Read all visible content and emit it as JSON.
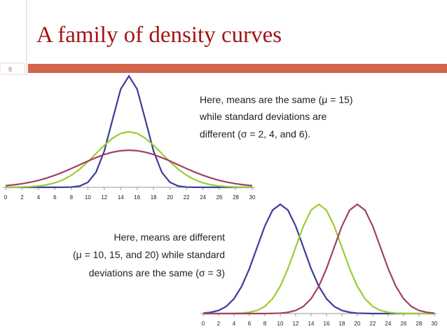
{
  "slide": {
    "title": "A family of density curves",
    "number": "8"
  },
  "chart_data": [
    {
      "type": "line",
      "x": [
        0,
        1,
        2,
        3,
        4,
        5,
        6,
        7,
        8,
        9,
        10,
        11,
        12,
        13,
        14,
        15,
        16,
        17,
        18,
        19,
        20,
        21,
        22,
        23,
        24,
        25,
        26,
        27,
        28,
        29,
        30
      ],
      "xlim": [
        0,
        30
      ],
      "xticks": [
        0,
        2,
        4,
        6,
        8,
        10,
        12,
        14,
        16,
        18,
        20,
        22,
        24,
        26,
        28,
        30
      ],
      "ylim": [
        0,
        0.2
      ],
      "annotation": [
        "Here, means are the same (μ = 15)",
        "while standard deviations are",
        "different (σ = 2, 4, and 6)."
      ],
      "series": [
        {
          "color": "#3c3c9c",
          "values": [
            0,
            0,
            0,
            0,
            0,
            0,
            0,
            0.0001,
            0.0004,
            0.0022,
            0.0088,
            0.027,
            0.0648,
            0.121,
            0.176,
            0.1995,
            0.176,
            0.121,
            0.0648,
            0.027,
            0.0088,
            0.0022,
            0.0004,
            0.0001,
            0,
            0,
            0,
            0,
            0,
            0,
            0
          ]
        },
        {
          "color": "#9acd32",
          "values": [
            0.0001,
            0.0002,
            0.0005,
            0.0011,
            0.0023,
            0.0044,
            0.0079,
            0.0135,
            0.0216,
            0.0324,
            0.0457,
            0.0605,
            0.0753,
            0.088,
            0.0967,
            0.0997,
            0.0967,
            0.088,
            0.0753,
            0.0605,
            0.0457,
            0.0324,
            0.0216,
            0.0135,
            0.0079,
            0.0044,
            0.0023,
            0.0011,
            0.0005,
            0.0002,
            0.0001
          ]
        },
        {
          "color": "#a0406a",
          "values": [
            0.0029,
            0.0044,
            0.0064,
            0.009,
            0.0124,
            0.0166,
            0.0216,
            0.0273,
            0.0337,
            0.0403,
            0.047,
            0.0532,
            0.0587,
            0.0629,
            0.0656,
            0.0665,
            0.0656,
            0.0629,
            0.0587,
            0.0532,
            0.047,
            0.0403,
            0.0337,
            0.0273,
            0.0216,
            0.0166,
            0.0124,
            0.009,
            0.0064,
            0.0044,
            0.0029
          ]
        }
      ]
    },
    {
      "type": "line",
      "x": [
        0,
        1,
        2,
        3,
        4,
        5,
        6,
        7,
        8,
        9,
        10,
        11,
        12,
        13,
        14,
        15,
        16,
        17,
        18,
        19,
        20,
        21,
        22,
        23,
        24,
        25,
        26,
        27,
        28,
        29,
        30
      ],
      "xlim": [
        0,
        30
      ],
      "xticks": [
        0,
        2,
        4,
        6,
        8,
        10,
        12,
        14,
        16,
        18,
        20,
        22,
        24,
        26,
        28,
        30
      ],
      "ylim": [
        0,
        0.14
      ],
      "annotation": [
        "Here, means are different",
        "(μ = 10, 15, and 20) while standard",
        "deviations are the same (σ = 3)"
      ],
      "series": [
        {
          "color": "#3c3c9c",
          "values": [
            0.0005,
            0.0015,
            0.0038,
            0.0087,
            0.018,
            0.0332,
            0.0547,
            0.0807,
            0.1065,
            0.1258,
            0.133,
            0.1258,
            0.1065,
            0.0807,
            0.0547,
            0.0332,
            0.018,
            0.0087,
            0.0038,
            0.0015,
            0.0005,
            0.0002,
            0,
            0,
            0,
            0,
            0,
            0,
            0,
            0,
            0
          ]
        },
        {
          "color": "#9acd32",
          "values": [
            0,
            0,
            0,
            0,
            0.0002,
            0.0005,
            0.0015,
            0.0038,
            0.0087,
            0.018,
            0.0332,
            0.0547,
            0.0807,
            0.1065,
            0.1258,
            0.133,
            0.1258,
            0.1065,
            0.0807,
            0.0547,
            0.0332,
            0.018,
            0.0087,
            0.0038,
            0.0015,
            0.0005,
            0.0002,
            0,
            0,
            0,
            0
          ]
        },
        {
          "color": "#a0406a",
          "values": [
            0,
            0,
            0,
            0,
            0,
            0,
            0,
            0,
            0,
            0.0002,
            0.0005,
            0.0015,
            0.0038,
            0.0087,
            0.018,
            0.0332,
            0.0547,
            0.0807,
            0.1065,
            0.1258,
            0.133,
            0.1258,
            0.1065,
            0.0807,
            0.0547,
            0.0332,
            0.018,
            0.0087,
            0.0038,
            0.0015,
            0.0005
          ]
        }
      ]
    }
  ]
}
